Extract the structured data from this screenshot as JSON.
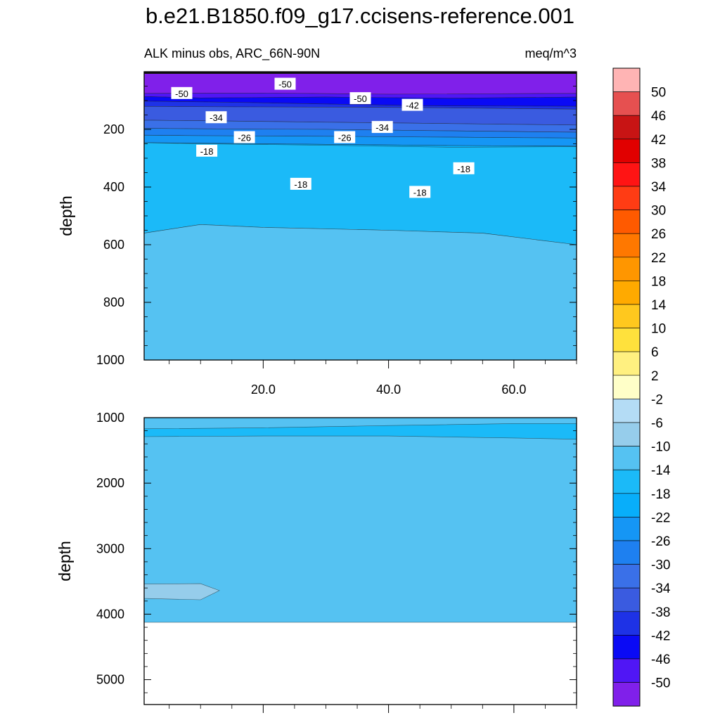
{
  "figure": {
    "title": "b.e21.B1850.f09_g17.ccisens-reference.001",
    "subtitle_left": "ALK minus obs, ARC_66N-90N",
    "subtitle_right": "meq/m^3"
  },
  "chart_data": [
    {
      "type": "heatmap",
      "panel": "upper",
      "variable": "ALK minus obs",
      "region": "ARC_66N-90N",
      "units": "meq/m^3",
      "ylabel": "depth",
      "xlabel": "",
      "xlim": [
        1,
        70
      ],
      "ylim": [
        1000,
        0
      ],
      "x_ticks": [
        20,
        40,
        60
      ],
      "x_tick_labels": [
        "20.0",
        "40.0",
        "60.0"
      ],
      "y_ticks": [
        200,
        400,
        600,
        800,
        1000
      ],
      "y_tick_labels": [
        "200",
        "400",
        "600",
        "800",
        "1000"
      ],
      "fill_bands": [
        {
          "level": "<-50",
          "color": "#8020ea",
          "boundary": [
            [
              1,
              5
            ],
            [
              70,
              5
            ],
            [
              70,
              75
            ],
            [
              40,
              78
            ],
            [
              20,
              74
            ],
            [
              1,
              75
            ]
          ]
        },
        {
          "level": "-50",
          "color": "#5016f5",
          "boundary": [
            [
              1,
              75
            ],
            [
              20,
              74
            ],
            [
              40,
              78
            ],
            [
              70,
              75
            ],
            [
              70,
              88
            ],
            [
              50,
              92
            ],
            [
              30,
              88
            ],
            [
              10,
              91
            ],
            [
              1,
              86
            ]
          ]
        },
        {
          "level": "-46",
          "color": "#0a0af5",
          "boundary": [
            [
              1,
              86
            ],
            [
              10,
              91
            ],
            [
              30,
              88
            ],
            [
              50,
              92
            ],
            [
              70,
              88
            ],
            [
              70,
              120
            ],
            [
              45,
              118
            ],
            [
              30,
              112
            ],
            [
              15,
              106
            ],
            [
              1,
              102
            ]
          ]
        },
        {
          "level": "-42",
          "color": "#1e32e6",
          "boundary": [
            [
              1,
              102
            ],
            [
              15,
              106
            ],
            [
              30,
              112
            ],
            [
              45,
              118
            ],
            [
              70,
              120
            ],
            [
              70,
              130
            ],
            [
              48,
              125
            ],
            [
              35,
              123
            ],
            [
              15,
              122
            ],
            [
              1,
              120
            ]
          ]
        },
        {
          "level": "-38",
          "color": "#3a5be0",
          "boundary": [
            [
              1,
              120
            ],
            [
              15,
              122
            ],
            [
              35,
              123
            ],
            [
              48,
              125
            ],
            [
              70,
              130
            ],
            [
              70,
              185
            ],
            [
              50,
              180
            ],
            [
              30,
              175
            ],
            [
              10,
              170
            ],
            [
              1,
              168
            ]
          ]
        },
        {
          "level": "-34",
          "color": "#3a70e8",
          "boundary": [
            [
              1,
              168
            ],
            [
              10,
              170
            ],
            [
              30,
              175
            ],
            [
              50,
              180
            ],
            [
              70,
              185
            ],
            [
              70,
              210
            ],
            [
              50,
              205
            ],
            [
              30,
              200
            ],
            [
              10,
              198
            ],
            [
              1,
              196
            ]
          ]
        },
        {
          "level": "-30",
          "color": "#1e80f0",
          "boundary": [
            [
              1,
              196
            ],
            [
              10,
              198
            ],
            [
              30,
              200
            ],
            [
              50,
              205
            ],
            [
              70,
              210
            ],
            [
              70,
              230
            ],
            [
              50,
              227
            ],
            [
              30,
              224
            ],
            [
              10,
              222
            ],
            [
              1,
              220
            ]
          ]
        },
        {
          "level": "-26",
          "color": "#1596f5",
          "boundary": [
            [
              1,
              220
            ],
            [
              10,
              222
            ],
            [
              30,
              224
            ],
            [
              50,
              227
            ],
            [
              70,
              230
            ],
            [
              70,
              258
            ],
            [
              50,
              256
            ],
            [
              30,
              252
            ],
            [
              10,
              248
            ],
            [
              1,
              246
            ]
          ]
        },
        {
          "level": "-22",
          "color": "#08aefa",
          "boundary": [
            [
              1,
              246
            ],
            [
              10,
              248
            ],
            [
              30,
              252
            ],
            [
              50,
              256
            ],
            [
              70,
              258
            ],
            [
              70,
              270
            ],
            [
              50,
              272
            ],
            [
              40,
              300
            ],
            [
              30,
              350
            ],
            [
              20,
              380
            ],
            [
              30,
              400
            ],
            [
              45,
              410
            ],
            [
              60,
              420
            ],
            [
              70,
              440
            ],
            [
              70,
              450
            ],
            [
              1,
              450
            ]
          ]
        },
        {
          "level": "-18",
          "color": "#1bbaf8",
          "boundary": [
            [
              1,
              246
            ],
            [
              1,
              560
            ],
            [
              10,
              530
            ],
            [
              20,
              540
            ],
            [
              40,
              550
            ],
            [
              55,
              560
            ],
            [
              70,
              600
            ],
            [
              70,
              260
            ],
            [
              50,
              262
            ],
            [
              30,
              255
            ],
            [
              10,
              250
            ]
          ]
        },
        {
          "level": "-14",
          "color": "#55c2f2",
          "boundary": [
            [
              1,
              560
            ],
            [
              10,
              530
            ],
            [
              20,
              540
            ],
            [
              40,
              550
            ],
            [
              55,
              560
            ],
            [
              70,
              600
            ],
            [
              70,
              1000
            ],
            [
              1,
              1000
            ]
          ]
        }
      ],
      "contour_labels": [
        {
          "text": "-50",
          "x": 7,
          "y": 75
        },
        {
          "text": "-50",
          "x": 23.5,
          "y": 43
        },
        {
          "text": "-50",
          "x": 35.5,
          "y": 93
        },
        {
          "text": "-42",
          "x": 43.8,
          "y": 116
        },
        {
          "text": "-34",
          "x": 12.5,
          "y": 159
        },
        {
          "text": "-34",
          "x": 39,
          "y": 193
        },
        {
          "text": "-26",
          "x": 17,
          "y": 228
        },
        {
          "text": "-26",
          "x": 33,
          "y": 228
        },
        {
          "text": "-18",
          "x": 11,
          "y": 275
        },
        {
          "text": "-18",
          "x": 26,
          "y": 390
        },
        {
          "text": "-18",
          "x": 45,
          "y": 418
        },
        {
          "text": "-18",
          "x": 52,
          "y": 336
        }
      ]
    },
    {
      "type": "heatmap",
      "panel": "lower",
      "variable": "ALK minus obs",
      "region": "ARC_66N-90N",
      "units": "meq/m^3",
      "ylabel": "depth",
      "xlabel": "",
      "xlim": [
        1,
        70
      ],
      "ylim": [
        5380,
        1000
      ],
      "x_ticks": [
        20,
        40,
        60
      ],
      "x_tick_labels": [
        "",
        "",
        ""
      ],
      "y_ticks": [
        1000,
        2000,
        3000,
        4000,
        5000
      ],
      "y_tick_labels": [
        "1000",
        "2000",
        "3000",
        "4000",
        "5000"
      ],
      "data_bottom_depth": 4125,
      "fill_bands": [
        {
          "level": "-14",
          "color": "#55c2f2",
          "boundary": [
            [
              1,
              1000
            ],
            [
              70,
              1000
            ],
            [
              70,
              4125
            ],
            [
              1,
              4125
            ]
          ]
        },
        {
          "level": "-18",
          "color": "#1bbaf8",
          "boundary": [
            [
              1,
              1170
            ],
            [
              20,
              1155
            ],
            [
              40,
              1120
            ],
            [
              60,
              1090
            ],
            [
              70,
              1090
            ],
            [
              70,
              1330
            ],
            [
              60,
              1310
            ],
            [
              40,
              1280
            ],
            [
              20,
              1280
            ],
            [
              1,
              1290
            ]
          ]
        },
        {
          "level": "-10",
          "color": "#96cdeb",
          "boundary": [
            [
              1,
              3540
            ],
            [
              10,
              3535
            ],
            [
              13,
              3640
            ],
            [
              10,
              3780
            ],
            [
              1,
              3760
            ]
          ]
        }
      ]
    }
  ],
  "colorbar": {
    "labels": [
      "50",
      "46",
      "42",
      "38",
      "34",
      "30",
      "26",
      "22",
      "18",
      "14",
      "10",
      "6",
      "2",
      "-2",
      "-6",
      "-10",
      "-14",
      "-18",
      "-22",
      "-26",
      "-30",
      "-34",
      "-38",
      "-42",
      "-46",
      "-50"
    ],
    "colors": [
      "#ffb4b4",
      "#e65050",
      "#c81414",
      "#e10000",
      "#ff1414",
      "#ff3c14",
      "#ff5a00",
      "#ff7800",
      "#ff9600",
      "#ffaa00",
      "#ffc81e",
      "#ffe13c",
      "#fff080",
      "#ffffc8",
      "#b4dcf5",
      "#96cdeb",
      "#55c2f2",
      "#1bbaf8",
      "#08aefa",
      "#1596f5",
      "#1e80f0",
      "#3a70e8",
      "#3a5be0",
      "#1e32e6",
      "#0a0af5",
      "#5016f5",
      "#8020ea"
    ]
  }
}
